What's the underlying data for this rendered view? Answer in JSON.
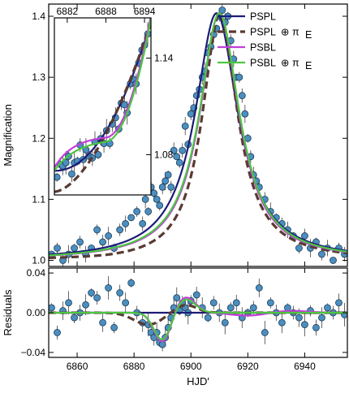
{
  "chart_data": [
    {
      "type": "line",
      "panel": "main",
      "xlabel": "",
      "ylabel": "Magnification",
      "xlim": [
        6850,
        6955
      ],
      "ylim": [
        0.99,
        1.42
      ],
      "yticks": [
        1.0,
        1.1,
        1.2,
        1.3,
        1.4
      ],
      "ytick_labels": [
        "1.0",
        "1.1",
        "1.2",
        "1.3",
        "1.4"
      ],
      "legend_position": "top-right",
      "legend": [
        {
          "label": "PSPL",
          "sub": "",
          "color": "#1c1c78",
          "dash": false
        },
        {
          "label": "PSPL",
          "sub": "⊕ π",
          "subE": "E",
          "color": "#5a3a32",
          "dash": true
        },
        {
          "label": "PSBL",
          "sub": "",
          "color": "#c040d8",
          "dash": false
        },
        {
          "label": "PSBL",
          "sub": "⊕ π",
          "subE": "E",
          "color": "#4cc640",
          "dash": false
        }
      ],
      "series": [
        {
          "name": "PSPL",
          "color": "#1c1c78",
          "peak_x": 6909,
          "peak_y": 1.405
        },
        {
          "name": "PSPL⊕πE",
          "color": "#5a3a32",
          "peak_x": 6910,
          "peak_y": 1.405
        },
        {
          "name": "PSBL",
          "color": "#c040d8",
          "peak_x": 6910,
          "peak_y": 1.405
        },
        {
          "name": "PSBL⊕πE",
          "color": "#4cc640",
          "peak_x": 6910,
          "peak_y": 1.405
        }
      ],
      "data_points": {
        "color": "#4a8fc0",
        "x": [
          6851,
          6853,
          6855,
          6857,
          6859,
          6861,
          6863,
          6865,
          6867,
          6869,
          6871,
          6873,
          6875,
          6877,
          6879,
          6881,
          6883,
          6884,
          6885,
          6886,
          6887,
          6888,
          6889,
          6890,
          6891,
          6892,
          6893,
          6894,
          6895,
          6896,
          6897,
          6898,
          6899,
          6900,
          6901,
          6902,
          6903,
          6904,
          6905,
          6906,
          6907,
          6908,
          6909,
          6910,
          6911,
          6912,
          6913,
          6914,
          6915,
          6916,
          6917,
          6918,
          6919,
          6920,
          6921,
          6922,
          6923,
          6924,
          6926,
          6928,
          6930,
          6932,
          6934,
          6936,
          6938,
          6940,
          6942,
          6944,
          6946,
          6948,
          6950,
          6952,
          6954
        ],
        "y": [
          1.01,
          1.02,
          1.0,
          1.01,
          1.02,
          1.03,
          1.01,
          1.02,
          1.05,
          1.03,
          1.04,
          1.02,
          1.05,
          1.06,
          1.07,
          1.08,
          1.06,
          1.1,
          1.08,
          1.12,
          1.11,
          1.1,
          1.09,
          1.12,
          1.13,
          1.14,
          1.12,
          1.18,
          1.17,
          1.16,
          1.18,
          1.22,
          1.19,
          1.24,
          1.25,
          1.27,
          1.28,
          1.3,
          1.31,
          1.34,
          1.35,
          1.37,
          1.38,
          1.4,
          1.41,
          1.39,
          1.4,
          1.36,
          1.33,
          1.3,
          1.3,
          1.27,
          1.24,
          1.2,
          1.17,
          1.14,
          1.13,
          1.12,
          1.1,
          1.08,
          1.07,
          1.06,
          1.05,
          1.04,
          1.02,
          1.04,
          1.02,
          1.03,
          1.01,
          1.02,
          1.0,
          1.02,
          1.01
        ]
      }
    },
    {
      "type": "line",
      "panel": "inset",
      "xlim": [
        6880,
        6895
      ],
      "ylim": [
        1.055,
        1.165
      ],
      "xticks": [
        6882,
        6888,
        6894
      ],
      "xtick_labels": [
        "6882",
        "6888",
        "6894"
      ],
      "yticks": [
        1.08,
        1.14
      ],
      "ytick_labels": [
        "1.08",
        "1.14"
      ],
      "data_points": {
        "x": [
          6880.4,
          6880.9,
          6881.3,
          6881.8,
          6882.2,
          6882.7,
          6883.1,
          6883.6,
          6884.0,
          6884.5,
          6884.9,
          6885.4,
          6885.9,
          6886.3,
          6886.8,
          6887.2,
          6887.7,
          6888.1,
          6888.6,
          6889.0,
          6889.5,
          6890.0,
          6890.4,
          6890.9,
          6891.3,
          6891.8,
          6892.2,
          6892.7,
          6893.1,
          6893.6,
          6894.0,
          6894.5
        ],
        "y": [
          1.066,
          1.074,
          1.073,
          1.075,
          1.079,
          1.068,
          1.075,
          1.076,
          1.086,
          1.077,
          1.083,
          1.079,
          1.078,
          1.088,
          1.08,
          1.09,
          1.087,
          1.095,
          1.087,
          1.099,
          1.103,
          1.096,
          1.112,
          1.111,
          1.106,
          1.124,
          1.127,
          1.124,
          1.137,
          1.145,
          1.148,
          1.155
        ]
      }
    },
    {
      "type": "line",
      "panel": "residuals",
      "xlabel": "HJD′",
      "ylabel": "Residuals",
      "xlim": [
        6850,
        6955
      ],
      "ylim": [
        -0.045,
        0.045
      ],
      "xticks": [
        6860,
        6880,
        6900,
        6920,
        6940
      ],
      "xtick_labels": [
        "6860",
        "6880",
        "6900",
        "6920",
        "6940"
      ],
      "yticks": [
        -0.04,
        0.0,
        0.04
      ],
      "ytick_labels": [
        "−0.04",
        "0.00",
        "0.04"
      ],
      "data_points": {
        "x": [
          6851,
          6853,
          6855,
          6857,
          6859,
          6861,
          6863,
          6865,
          6867,
          6869,
          6871,
          6873,
          6875,
          6877,
          6879,
          6881,
          6883,
          6885,
          6886,
          6887,
          6888,
          6889,
          6890,
          6891,
          6892,
          6893,
          6894,
          6895,
          6896,
          6897,
          6898,
          6899,
          6900,
          6902,
          6904,
          6906,
          6908,
          6910,
          6912,
          6914,
          6916,
          6918,
          6920,
          6922,
          6924,
          6926,
          6928,
          6930,
          6932,
          6934,
          6936,
          6938,
          6940,
          6942,
          6944,
          6946,
          6948,
          6950,
          6952,
          6954
        ],
        "y": [
          0.005,
          -0.02,
          0.002,
          0.01,
          -0.005,
          0.0,
          0.008,
          0.02,
          0.015,
          -0.01,
          0.025,
          -0.015,
          0.02,
          0.01,
          0.03,
          0.0,
          -0.01,
          -0.012,
          -0.02,
          -0.025,
          -0.02,
          -0.03,
          -0.032,
          -0.025,
          -0.015,
          -0.005,
          0.005,
          0.015,
          0.002,
          0.01,
          0.005,
          0.0,
          0.012,
          0.018,
          0.005,
          -0.005,
          0.01,
          0.0,
          -0.01,
          0.005,
          0.01,
          -0.005,
          0.0,
          0.005,
          0.025,
          -0.02,
          0.01,
          0.0,
          -0.01,
          0.005,
          0.0,
          -0.005,
          -0.012,
          0.002,
          -0.015,
          -0.005,
          0.005,
          0.0,
          0.01,
          -0.002
        ]
      }
    }
  ]
}
